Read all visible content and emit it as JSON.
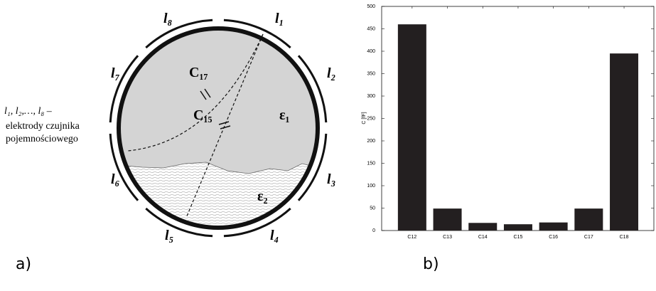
{
  "diagram": {
    "electrodes": [
      "l₁",
      "l₂",
      "l₃",
      "l₄",
      "l₅",
      "l₆",
      "l₇",
      "l₈"
    ],
    "capacitances": [
      "C₁₇",
      "C₁₅"
    ],
    "media": [
      "ε₁",
      "ε₂"
    ],
    "legend": [
      "l₁, l₂,…, l₈ –",
      "elektrody czujnika",
      "pojemnościowego"
    ],
    "panel_label": "a)"
  },
  "chart_data": {
    "type": "bar",
    "panel_label": "b)",
    "y_label": "C [fF]",
    "categories": [
      "C12",
      "C13",
      "C14",
      "C15",
      "C16",
      "C17",
      "C18"
    ],
    "values": [
      460,
      49,
      17,
      14,
      18,
      49,
      395
    ],
    "color": "#231f20",
    "ylim": [
      0,
      500
    ],
    "yticks": [
      0,
      50,
      100,
      150,
      200,
      250,
      300,
      350,
      400,
      450,
      500
    ],
    "grid": false
  }
}
